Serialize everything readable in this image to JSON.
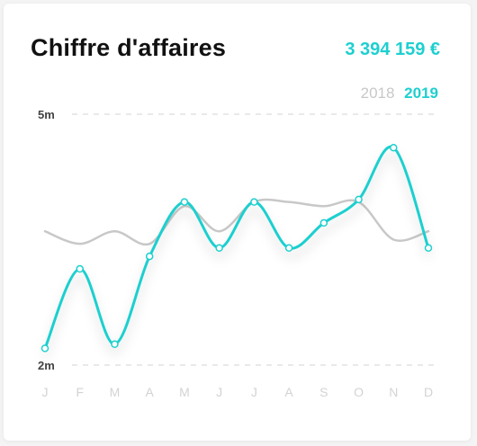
{
  "header": {
    "title": "Chiffre d'affaires",
    "total": "3 394 159 €"
  },
  "colors": {
    "accent": "#1ecfcf",
    "muted": "#c8c8c8",
    "grid": "#e2e2e2",
    "tick": "#d3d3d3",
    "axis_label": "#444444"
  },
  "chart_data": {
    "type": "line",
    "categories": [
      "J",
      "F",
      "M",
      "A",
      "M",
      "J",
      "J",
      "A",
      "S",
      "O",
      "N",
      "D"
    ],
    "ylim": [
      2,
      5
    ],
    "y_tick_labels": [
      "5m",
      "2m"
    ],
    "y_ticks": [
      5,
      2
    ],
    "grid": true,
    "legend": [
      "2018",
      "2019"
    ],
    "legend_position": "top-right",
    "series": [
      {
        "name": "2018",
        "color": "#c8c8c8",
        "values": [
          3.6,
          3.45,
          3.6,
          3.45,
          3.9,
          3.6,
          3.95,
          3.95,
          3.9,
          3.95,
          3.5,
          3.6
        ]
      },
      {
        "name": "2019",
        "color": "#1ecfcf",
        "values": [
          2.2,
          3.15,
          2.25,
          3.3,
          3.95,
          3.4,
          3.95,
          3.4,
          3.7,
          3.98,
          4.6,
          3.4
        ]
      }
    ]
  }
}
